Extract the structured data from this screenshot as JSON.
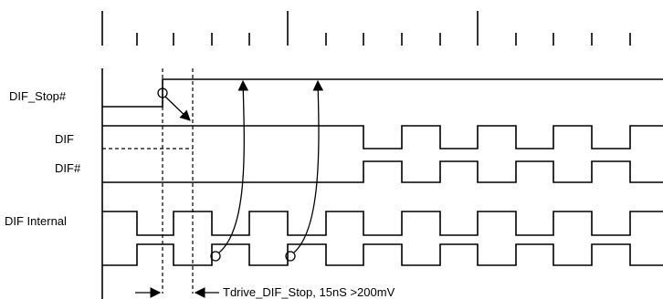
{
  "signals": {
    "dif_stop": "DIF_Stop#",
    "dif": "DIF",
    "dif_n": "DIF#",
    "dif_internal": "DIF Internal"
  },
  "annotation": {
    "timing": "Tdrive_DIF_Stop, 15nS >200mV"
  }
}
